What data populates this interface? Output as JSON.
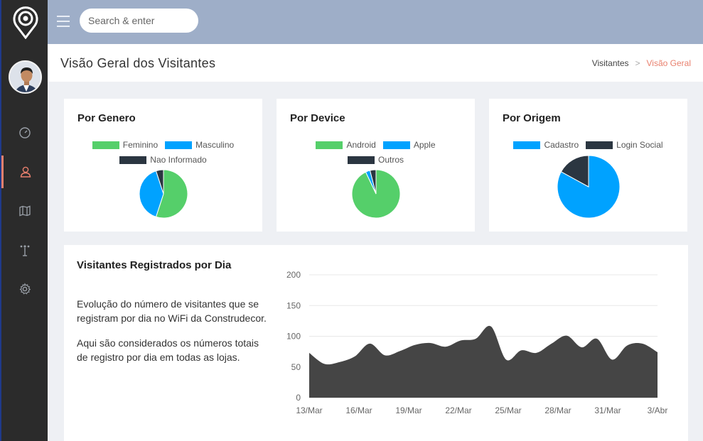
{
  "topbar": {
    "search_placeholder": "Search & enter"
  },
  "sidebar": {
    "items": [
      {
        "icon": "dashboard-icon",
        "active": false
      },
      {
        "icon": "user-icon",
        "active": true
      },
      {
        "icon": "map-icon",
        "active": false
      },
      {
        "icon": "antenna-icon",
        "active": false
      },
      {
        "icon": "gear-icon",
        "active": false
      }
    ]
  },
  "header": {
    "title": "Visão Geral dos Visitantes",
    "breadcrumb": [
      "Visitantes",
      "Visão Geral"
    ]
  },
  "colors": {
    "green": "#55cf6a",
    "blue": "#00a2ff",
    "dark": "#2b3641",
    "accent": "#e9806e"
  },
  "cards": [
    {
      "title": "Por Genero",
      "legend": [
        "Feminino",
        "Masculino",
        "Nao Informado"
      ],
      "chart_data": {
        "type": "pie",
        "categories": [
          "Feminino",
          "Masculino",
          "Nao Informado"
        ],
        "values": [
          55,
          40,
          5
        ]
      }
    },
    {
      "title": "Por Device",
      "legend": [
        "Android",
        "Apple",
        "Outros"
      ],
      "chart_data": {
        "type": "pie",
        "categories": [
          "Android",
          "Apple",
          "Outros"
        ],
        "values": [
          93,
          3,
          4
        ]
      }
    },
    {
      "title": "Por Origem",
      "legend": [
        "Cadastro",
        "Login Social"
      ],
      "chart_data": {
        "type": "pie",
        "categories": [
          "Cadastro",
          "Login Social"
        ],
        "values": [
          83,
          17
        ]
      }
    }
  ],
  "daily": {
    "title": "Visitantes Registrados por Dia",
    "desc1": "Evolução do número de visitantes que se registram por dia no WiFi da Construdecor.",
    "desc2": "Aqui são considerados os números totais de registro por dia em todas as lojas.",
    "chart_data": {
      "type": "area",
      "x_ticks": [
        "13/Mar",
        "16/Mar",
        "19/Mar",
        "22/Mar",
        "25/Mar",
        "28/Mar",
        "31/Mar",
        "3/Abr"
      ],
      "y_ticks": [
        0,
        50,
        100,
        150,
        200
      ],
      "ylim": [
        0,
        200
      ],
      "values": [
        73,
        55,
        58,
        67,
        88,
        69,
        76,
        86,
        89,
        83,
        93,
        96,
        116,
        62,
        77,
        73,
        88,
        101,
        82,
        96,
        62,
        85,
        88,
        74
      ]
    }
  }
}
